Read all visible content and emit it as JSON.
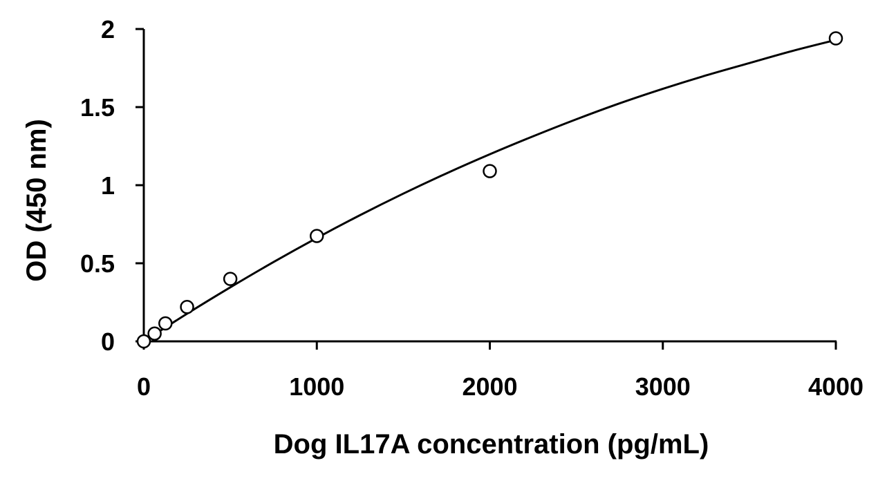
{
  "chart_data": {
    "type": "scatter",
    "title": "",
    "xlabel": "Dog IL17A concentration (pg/mL)",
    "ylabel": "OD (450 nm)",
    "xlim": [
      0,
      4000
    ],
    "ylim": [
      0,
      2
    ],
    "x_ticks": [
      "0",
      "1000",
      "2000",
      "3000",
      "4000"
    ],
    "y_ticks": [
      "0",
      "0.5",
      "1",
      "1.5",
      "2"
    ],
    "grid": false,
    "legend": "none",
    "series": [
      {
        "marker": "open-circle",
        "x": [
          0,
          62.5,
          125,
          250,
          500,
          1000,
          2000,
          4000
        ],
        "y": [
          0.0,
          0.05,
          0.115,
          0.22,
          0.4,
          0.675,
          1.09,
          1.94
        ]
      }
    ],
    "fit_curve": {
      "style": "solid-line",
      "x": [
        0,
        250,
        500,
        750,
        1000,
        1250,
        1500,
        1750,
        2000,
        2250,
        2500,
        2750,
        3000,
        3250,
        3500,
        3750,
        4000
      ],
      "y": [
        0.0,
        0.177,
        0.346,
        0.508,
        0.662,
        0.808,
        0.946,
        1.076,
        1.198,
        1.313,
        1.422,
        1.524,
        1.617,
        1.703,
        1.782,
        1.86,
        1.93
      ]
    },
    "colors": {
      "axis": "#000000",
      "marker_fill": "#ffffff",
      "marker_stroke": "#000000",
      "curve": "#000000"
    }
  }
}
